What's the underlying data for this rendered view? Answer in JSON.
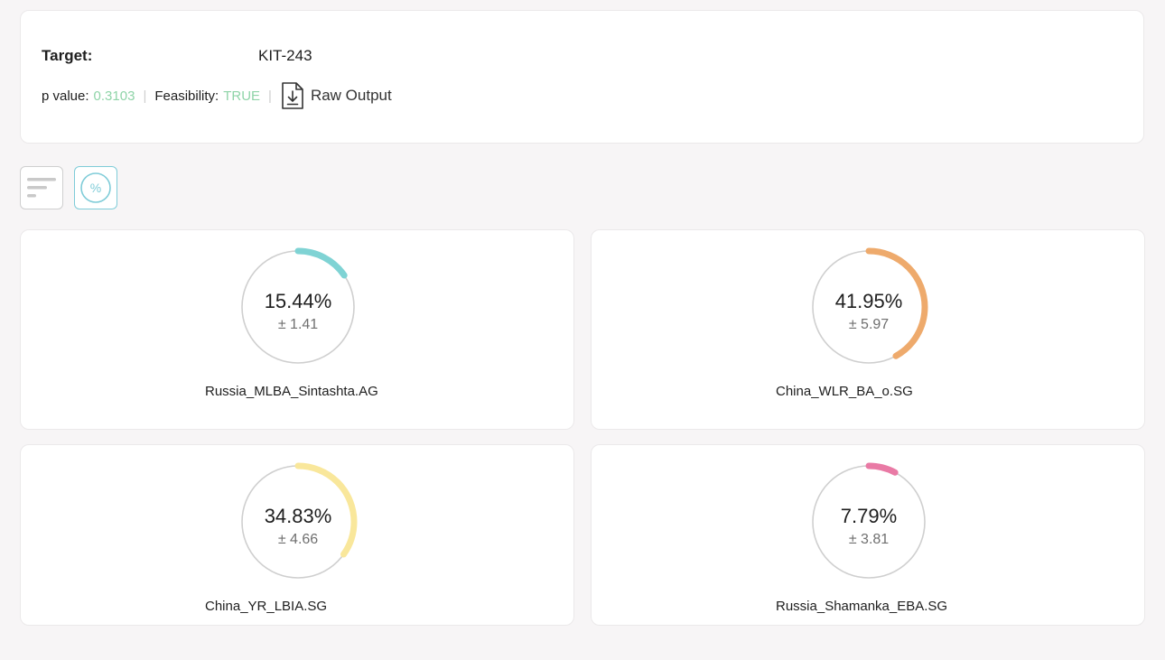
{
  "header": {
    "target_label": "Target:",
    "target_value": "KIT-243",
    "p_value_label": "p value:",
    "p_value": "0.3103",
    "feasibility_label": "Feasibility:",
    "feasibility": "TRUE",
    "raw_output_label": "Raw Output",
    "accent_color": "#8fd4a8"
  },
  "toolbar": {
    "list_view_icon": "bars-list-icon",
    "percent_view_icon": "percent-circle-icon",
    "percent_view_glyph": "%"
  },
  "results": [
    {
      "percent": 15.44,
      "percent_text": "15.44%",
      "error_text": "± 1.41",
      "population": "Russia_MLBA_Sintashta.AG",
      "color": "#7fd3d4"
    },
    {
      "percent": 41.95,
      "percent_text": "41.95%",
      "error_text": "± 5.97",
      "population": "China_WLR_BA_o.SG",
      "color": "#eeaa6c"
    },
    {
      "percent": 34.83,
      "percent_text": "34.83%",
      "error_text": "± 4.66",
      "population": "China_YR_LBIA.SG",
      "color": "#f9e79b"
    },
    {
      "percent": 7.79,
      "percent_text": "7.79%",
      "error_text": "± 3.81",
      "population": "Russia_Shamanka_EBA.SG",
      "color": "#e97aa5"
    }
  ]
}
